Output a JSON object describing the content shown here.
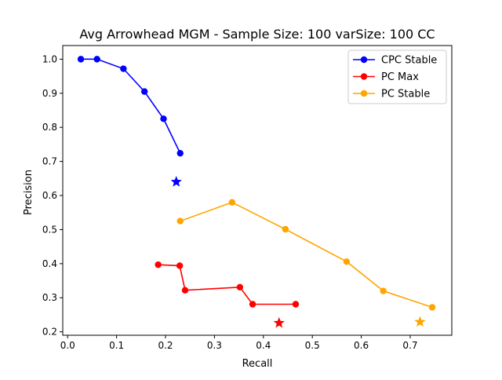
{
  "chart_data": {
    "type": "line",
    "title": "Avg Arrowhead MGM - Sample Size: 100 varSize: 100 CC",
    "xlabel": "Recall",
    "ylabel": "Precision",
    "xlim": [
      -0.01,
      0.785
    ],
    "ylim": [
      0.19,
      1.04
    ],
    "xticks": [
      0.0,
      0.1,
      0.2,
      0.3,
      0.4,
      0.5,
      0.6,
      0.7
    ],
    "xtick_labels": [
      "0.0",
      "0.1",
      "0.2",
      "0.3",
      "0.4",
      "0.5",
      "0.6",
      "0.7"
    ],
    "yticks": [
      0.2,
      0.3,
      0.4,
      0.5,
      0.6,
      0.7,
      0.8,
      0.9,
      1.0
    ],
    "ytick_labels": [
      "0.2",
      "0.3",
      "0.4",
      "0.5",
      "0.6",
      "0.7",
      "0.8",
      "0.9",
      "1.0"
    ],
    "grid": false,
    "legend_position": "top-right",
    "series": [
      {
        "name": "CPC Stable",
        "color": "#0000ff",
        "x": [
          0.027,
          0.06,
          0.114,
          0.157,
          0.196,
          0.23
        ],
        "y": [
          1.0,
          1.0,
          0.972,
          0.905,
          0.825,
          0.724
        ],
        "star": {
          "x": 0.222,
          "y": 0.64
        }
      },
      {
        "name": "PC Max",
        "color": "#ff0000",
        "x": [
          0.185,
          0.229,
          0.24,
          0.352,
          0.378,
          0.466
        ],
        "y": [
          0.397,
          0.394,
          0.322,
          0.331,
          0.281,
          0.281
        ],
        "star": {
          "x": 0.432,
          "y": 0.226
        }
      },
      {
        "name": "PC Stable",
        "color": "#ffa500",
        "x": [
          0.23,
          0.336,
          0.445,
          0.57,
          0.645,
          0.745
        ],
        "y": [
          0.525,
          0.58,
          0.501,
          0.406,
          0.32,
          0.272
        ],
        "star": {
          "x": 0.72,
          "y": 0.229
        }
      }
    ]
  }
}
